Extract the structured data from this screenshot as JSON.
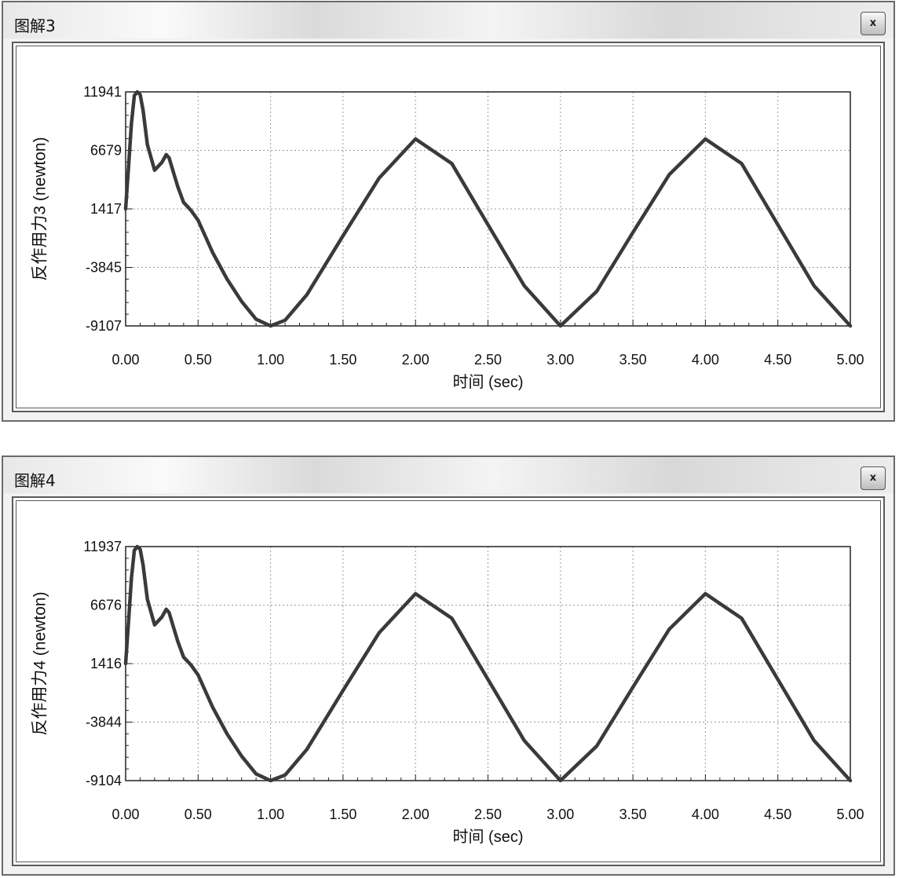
{
  "windows": [
    {
      "title": "图解3",
      "close_label": "x"
    },
    {
      "title": "图解4",
      "close_label": "x"
    }
  ],
  "chart_data": [
    {
      "type": "line",
      "ylabel": "反作用力3 (newton)",
      "xlabel": "时间 (sec)",
      "xlim": [
        0,
        5
      ],
      "ylim": [
        -9107,
        11941
      ],
      "x_ticks": [
        "0.00",
        "0.50",
        "1.00",
        "1.50",
        "2.00",
        "2.50",
        "3.00",
        "3.50",
        "4.00",
        "4.50",
        "5.00"
      ],
      "y_ticks": [
        "11941",
        "6679",
        "1417",
        "-3845",
        "-9107"
      ],
      "grid": true,
      "series": [
        {
          "x": [
            0,
            0.02,
            0.04,
            0.06,
            0.08,
            0.1,
            0.12,
            0.15,
            0.2,
            0.25,
            0.28,
            0.3,
            0.33,
            0.36,
            0.4,
            0.45,
            0.5,
            0.6,
            0.7,
            0.8,
            0.9,
            1.0,
            1.1,
            1.25,
            1.5,
            1.75,
            2.0,
            2.25,
            2.5,
            2.75,
            3.0,
            3.25,
            3.5,
            3.75,
            4.0,
            4.25,
            4.5,
            4.75,
            5.0
          ],
          "y": [
            1417,
            5200,
            9100,
            11600,
            11941,
            11700,
            10300,
            7200,
            4900,
            5600,
            6300,
            6000,
            4700,
            3400,
            2000,
            1300,
            400,
            -2500,
            -4900,
            -6900,
            -8500,
            -9107,
            -8600,
            -6300,
            -1000,
            4200,
            7700,
            5500,
            0,
            -5500,
            -9107,
            -6000,
            -700,
            4500,
            7700,
            5500,
            0,
            -5500,
            -9107
          ]
        }
      ]
    },
    {
      "type": "line",
      "ylabel": "反作用力4 (newton)",
      "xlabel": "时间 (sec)",
      "xlim": [
        0,
        5
      ],
      "ylim": [
        -9104,
        11937
      ],
      "x_ticks": [
        "0.00",
        "0.50",
        "1.00",
        "1.50",
        "2.00",
        "2.50",
        "3.00",
        "3.50",
        "4.00",
        "4.50",
        "5.00"
      ],
      "y_ticks": [
        "11937",
        "6676",
        "1416",
        "-3844",
        "-9104"
      ],
      "grid": true,
      "series": [
        {
          "x": [
            0,
            0.02,
            0.04,
            0.06,
            0.08,
            0.1,
            0.12,
            0.15,
            0.2,
            0.25,
            0.28,
            0.3,
            0.33,
            0.36,
            0.4,
            0.45,
            0.5,
            0.6,
            0.7,
            0.8,
            0.9,
            1.0,
            1.1,
            1.25,
            1.5,
            1.75,
            2.0,
            2.25,
            2.5,
            2.75,
            3.0,
            3.25,
            3.5,
            3.75,
            4.0,
            4.25,
            4.5,
            4.75,
            5.0
          ],
          "y": [
            1416,
            5200,
            9100,
            11600,
            11937,
            11700,
            10300,
            7200,
            4900,
            5600,
            6300,
            6000,
            4700,
            3400,
            2000,
            1300,
            400,
            -2500,
            -4900,
            -6900,
            -8500,
            -9104,
            -8600,
            -6300,
            -1000,
            4200,
            7700,
            5500,
            0,
            -5500,
            -9104,
            -6000,
            -700,
            4500,
            7700,
            5500,
            0,
            -5500,
            -9104
          ]
        }
      ]
    }
  ]
}
